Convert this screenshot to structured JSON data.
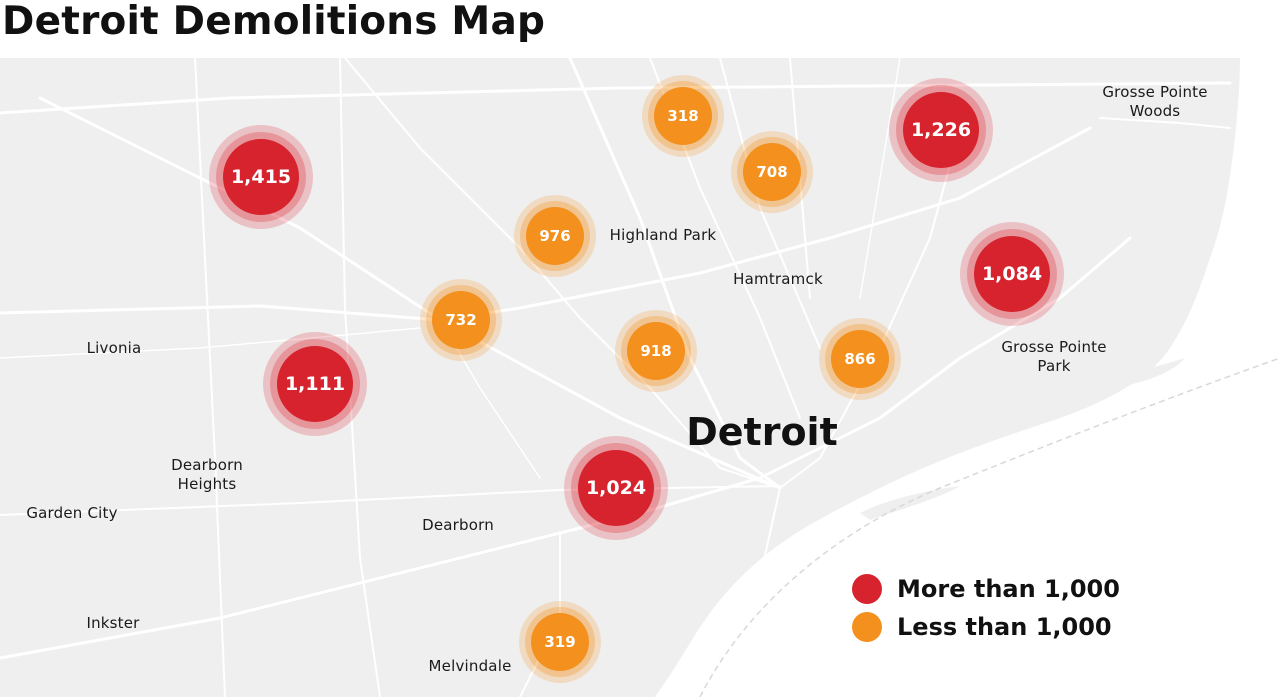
{
  "title": "Detroit Demolitions Map",
  "city_label": "Detroit",
  "places": [
    {
      "name": "Grosse Pointe\nWoods",
      "key": "grosse-pointe-woods"
    },
    {
      "name": "Highland Park",
      "key": "highland-park"
    },
    {
      "name": "Hamtramck",
      "key": "hamtramck"
    },
    {
      "name": "Livonia",
      "key": "livonia"
    },
    {
      "name": "Grosse Pointe\nPark",
      "key": "grosse-pointe-park"
    },
    {
      "name": "Dearborn\nHeights",
      "key": "dearborn-heights"
    },
    {
      "name": "Garden City",
      "key": "garden-city"
    },
    {
      "name": "Dearborn",
      "key": "dearborn"
    },
    {
      "name": "Inkster",
      "key": "inkster"
    },
    {
      "name": "Melvindale",
      "key": "melvindale"
    }
  ],
  "markers": [
    {
      "label": "1,415",
      "category": "more"
    },
    {
      "label": "318",
      "category": "less"
    },
    {
      "label": "1,226",
      "category": "more"
    },
    {
      "label": "708",
      "category": "less"
    },
    {
      "label": "976",
      "category": "less"
    },
    {
      "label": "1,084",
      "category": "more"
    },
    {
      "label": "732",
      "category": "less"
    },
    {
      "label": "918",
      "category": "less"
    },
    {
      "label": "866",
      "category": "less"
    },
    {
      "label": "1,111",
      "category": "more"
    },
    {
      "label": "1,024",
      "category": "more"
    },
    {
      "label": "319",
      "category": "less"
    }
  ],
  "legend": [
    {
      "label": "More than 1,000",
      "color": "#d6232d"
    },
    {
      "label": "Less than 1,000",
      "color": "#f3901e"
    }
  ],
  "colors": {
    "more": "#d6232d",
    "less": "#f3901e",
    "land": "#efefef",
    "road": "#ffffff",
    "water": "#ffffff"
  }
}
